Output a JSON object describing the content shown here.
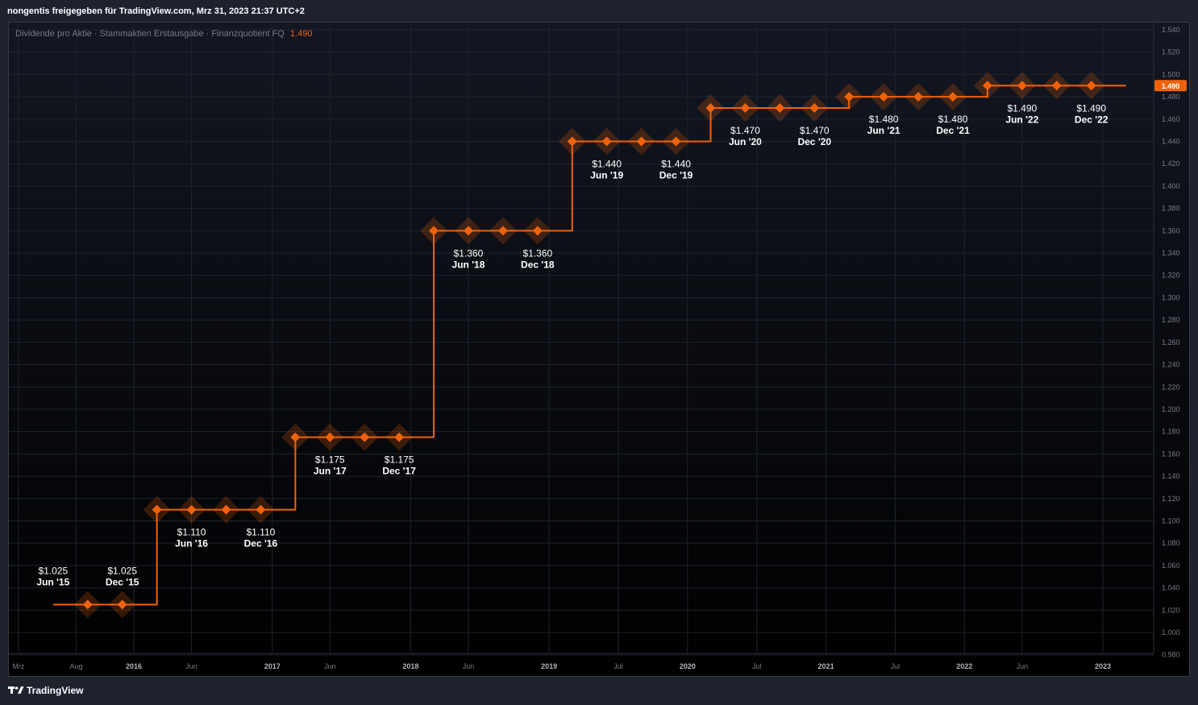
{
  "header": {
    "text": "nongentis freigegeben für TradingView.com, Mrz 31, 2023 21:37 UTC+2"
  },
  "legend": {
    "label": "Dividende pro Aktie · Stammaktien Erstausgabe · Finanzquotient FQ",
    "value": "1.490"
  },
  "footer": {
    "brand": "TradingView",
    "logo_icon": "tradingview-logo-icon"
  },
  "colors": {
    "accent": "#f0620a",
    "background_top": "#131722",
    "background_bottom": "#000000",
    "frame": "#1e222d",
    "grid": "#1f232d",
    "text": "#ffffff",
    "muted_text": "#787b86"
  },
  "chart_data": {
    "type": "line",
    "step": true,
    "title": "Dividende pro Aktie · Stammaktien Erstausgabe · Finanzquotient FQ",
    "ylim": [
      0.98,
      1.545
    ],
    "y_ticks": [
      "0.980",
      "1.000",
      "1.020",
      "1.040",
      "1.060",
      "1.080",
      "1.100",
      "1.120",
      "1.140",
      "1.160",
      "1.180",
      "1.200",
      "1.220",
      "1.240",
      "1.260",
      "1.280",
      "1.300",
      "1.320",
      "1.340",
      "1.360",
      "1.380",
      "1.400",
      "1.420",
      "1.440",
      "1.460",
      "1.480",
      "1.500",
      "1.520",
      "1.540"
    ],
    "x_ticks": [
      {
        "label": "Mrz",
        "date": "2015-03",
        "bold": false
      },
      {
        "label": "Aug",
        "date": "2015-08",
        "bold": false
      },
      {
        "label": "2016",
        "date": "2016-01",
        "bold": true
      },
      {
        "label": "Jun",
        "date": "2016-06",
        "bold": false
      },
      {
        "label": "2017",
        "date": "2017-01",
        "bold": true
      },
      {
        "label": "Jun",
        "date": "2017-06",
        "bold": false
      },
      {
        "label": "2018",
        "date": "2018-01",
        "bold": true
      },
      {
        "label": "Jun",
        "date": "2018-06",
        "bold": false
      },
      {
        "label": "2019",
        "date": "2019-01",
        "bold": true
      },
      {
        "label": "Jul",
        "date": "2019-07",
        "bold": false
      },
      {
        "label": "2020",
        "date": "2020-01",
        "bold": true
      },
      {
        "label": "Jul",
        "date": "2020-07",
        "bold": false
      },
      {
        "label": "2021",
        "date": "2021-01",
        "bold": true
      },
      {
        "label": "Jul",
        "date": "2021-07",
        "bold": false
      },
      {
        "label": "2022",
        "date": "2022-01",
        "bold": true
      },
      {
        "label": "Jun",
        "date": "2022-06",
        "bold": false
      },
      {
        "label": "2023",
        "date": "2023-01",
        "bold": true
      }
    ],
    "series": [
      {
        "points": [
          {
            "date": "2015-09",
            "value": 1.025
          },
          {
            "date": "2015-12",
            "value": 1.025
          },
          {
            "date": "2016-03",
            "value": 1.11
          },
          {
            "date": "2016-06",
            "value": 1.11
          },
          {
            "date": "2016-09",
            "value": 1.11
          },
          {
            "date": "2016-12",
            "value": 1.11
          },
          {
            "date": "2017-03",
            "value": 1.175
          },
          {
            "date": "2017-06",
            "value": 1.175
          },
          {
            "date": "2017-09",
            "value": 1.175
          },
          {
            "date": "2017-12",
            "value": 1.175
          },
          {
            "date": "2018-03",
            "value": 1.36
          },
          {
            "date": "2018-06",
            "value": 1.36
          },
          {
            "date": "2018-09",
            "value": 1.36
          },
          {
            "date": "2018-12",
            "value": 1.36
          },
          {
            "date": "2019-03",
            "value": 1.44
          },
          {
            "date": "2019-06",
            "value": 1.44
          },
          {
            "date": "2019-09",
            "value": 1.44
          },
          {
            "date": "2019-12",
            "value": 1.44
          },
          {
            "date": "2020-03",
            "value": 1.47
          },
          {
            "date": "2020-06",
            "value": 1.47
          },
          {
            "date": "2020-09",
            "value": 1.47
          },
          {
            "date": "2020-12",
            "value": 1.47
          },
          {
            "date": "2021-03",
            "value": 1.48
          },
          {
            "date": "2021-06",
            "value": 1.48
          },
          {
            "date": "2021-09",
            "value": 1.48
          },
          {
            "date": "2021-12",
            "value": 1.48
          },
          {
            "date": "2022-03",
            "value": 1.49
          },
          {
            "date": "2022-06",
            "value": 1.49
          },
          {
            "date": "2022-09",
            "value": 1.49
          },
          {
            "date": "2022-12",
            "value": 1.49
          }
        ]
      }
    ],
    "line_start": "2015-06",
    "line_end": "2023-03",
    "annotations": [
      {
        "value": "$1.025",
        "period": "Jun '15",
        "date": "2015-06",
        "level": 1.025,
        "position": "above"
      },
      {
        "value": "$1.025",
        "period": "Dec '15",
        "date": "2015-12",
        "level": 1.025,
        "position": "above"
      },
      {
        "value": "$1.110",
        "period": "Jun '16",
        "date": "2016-06",
        "level": 1.11,
        "position": "below"
      },
      {
        "value": "$1.110",
        "period": "Dec '16",
        "date": "2016-12",
        "level": 1.11,
        "position": "below"
      },
      {
        "value": "$1.175",
        "period": "Jun '17",
        "date": "2017-06",
        "level": 1.175,
        "position": "below"
      },
      {
        "value": "$1.175",
        "period": "Dec '17",
        "date": "2017-12",
        "level": 1.175,
        "position": "below"
      },
      {
        "value": "$1.360",
        "period": "Jun '18",
        "date": "2018-06",
        "level": 1.36,
        "position": "below"
      },
      {
        "value": "$1.360",
        "period": "Dec '18",
        "date": "2018-12",
        "level": 1.36,
        "position": "below"
      },
      {
        "value": "$1.440",
        "period": "Jun '19",
        "date": "2019-06",
        "level": 1.44,
        "position": "below"
      },
      {
        "value": "$1.440",
        "period": "Dec '19",
        "date": "2019-12",
        "level": 1.44,
        "position": "below"
      },
      {
        "value": "$1.470",
        "period": "Jun '20",
        "date": "2020-06",
        "level": 1.47,
        "position": "below"
      },
      {
        "value": "$1.470",
        "period": "Dec '20",
        "date": "2020-12",
        "level": 1.47,
        "position": "below"
      },
      {
        "value": "$1.480",
        "period": "Jun '21",
        "date": "2021-06",
        "level": 1.48,
        "position": "below"
      },
      {
        "value": "$1.480",
        "period": "Dec '21",
        "date": "2021-12",
        "level": 1.48,
        "position": "below"
      },
      {
        "value": "$1.490",
        "period": "Jun '22",
        "date": "2022-06",
        "level": 1.49,
        "position": "below"
      },
      {
        "value": "$1.490",
        "period": "Dec '22",
        "date": "2022-12",
        "level": 1.49,
        "position": "below"
      }
    ],
    "last_value_label": "1.490",
    "grid": true,
    "legend": "top-left"
  }
}
